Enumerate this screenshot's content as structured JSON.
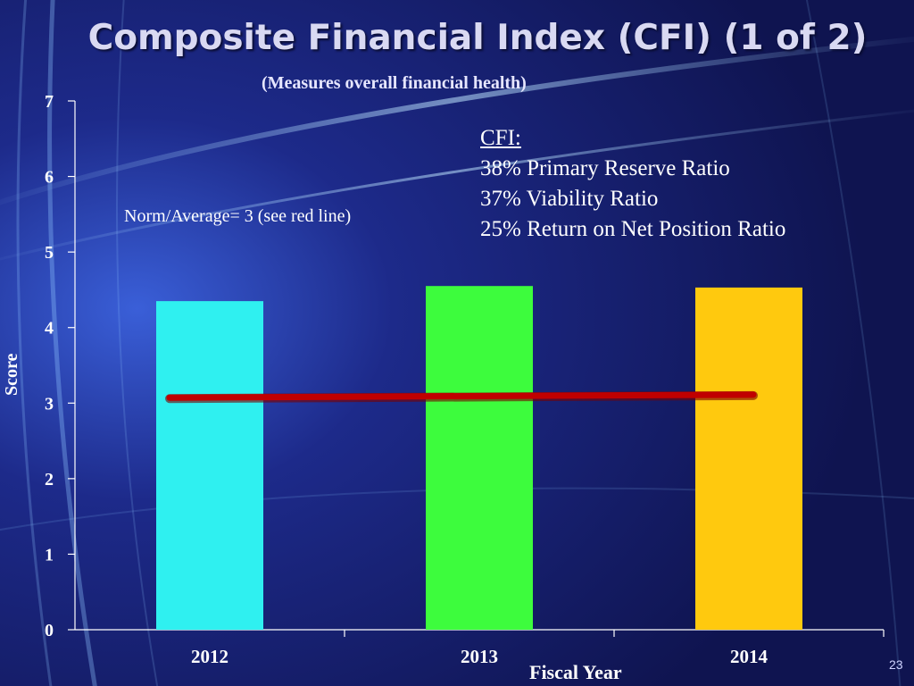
{
  "slide": {
    "title": "Composite Financial Index (CFI) (1 of 2)",
    "subtitle": "(Measures overall financial health)",
    "page_number": "23"
  },
  "legend_box": {
    "header": "CFI:",
    "lines": [
      "38% Primary Reserve Ratio",
      "37% Viability Ratio",
      "25% Return on Net Position Ratio"
    ]
  },
  "norm_note": "Norm/Average=  3 (see red line)",
  "chart_data": {
    "type": "bar",
    "title": "Composite Financial Index (CFI) (1 of 2)",
    "xlabel": "Fiscal Year",
    "ylabel": "Score",
    "categories": [
      "2012",
      "2013",
      "2014"
    ],
    "values": [
      4.35,
      4.55,
      4.53
    ],
    "colors": [
      "#2ff0f0",
      "#3dfc3d",
      "#ffc90e"
    ],
    "ylim": [
      0,
      7
    ],
    "yticks": [
      0,
      1,
      2,
      3,
      4,
      5,
      6,
      7
    ],
    "reference_line": {
      "value": 3.06,
      "end_value": 3.1,
      "color": "#c00000",
      "label": "Norm/Average"
    }
  }
}
